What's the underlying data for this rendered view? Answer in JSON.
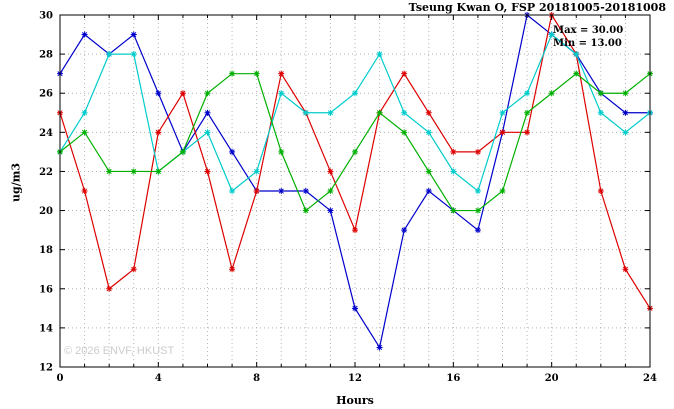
{
  "chart_data": {
    "type": "line",
    "title": "Tseung Kwan O, FSP 20181005-20181008",
    "xlabel": "Hours",
    "ylabel": "ug/m3",
    "xlim": [
      0,
      24
    ],
    "ylim": [
      12,
      30
    ],
    "xticks": [
      0,
      4,
      8,
      12,
      16,
      20,
      24
    ],
    "yticks": [
      12,
      14,
      16,
      18,
      20,
      22,
      24,
      26,
      28,
      30
    ],
    "grid": true,
    "legend": "none",
    "marker": "asterisk",
    "hours": [
      0,
      1,
      2,
      3,
      4,
      5,
      6,
      7,
      8,
      9,
      10,
      11,
      12,
      13,
      14,
      15,
      16,
      17,
      18,
      19,
      20,
      21,
      22,
      23,
      24
    ],
    "series": [
      {
        "name": "series-blue",
        "color": "#0000cc",
        "values": [
          27,
          29,
          28,
          29,
          26,
          23,
          25,
          23,
          21,
          21,
          21,
          20,
          15,
          13,
          19,
          21,
          20,
          19,
          24,
          30,
          29,
          28,
          26,
          25,
          25
        ]
      },
      {
        "name": "series-red",
        "color": "#dd0000",
        "values": [
          25,
          21,
          16,
          17,
          24,
          26,
          22,
          17,
          21,
          27,
          25,
          22,
          19,
          25,
          27,
          25,
          23,
          23,
          24,
          24,
          30,
          28,
          21,
          17,
          15
        ]
      },
      {
        "name": "series-cyan",
        "color": "#00cccc",
        "values": [
          23,
          25,
          28,
          28,
          22,
          23,
          24,
          21,
          22,
          26,
          25,
          25,
          26,
          28,
          25,
          24,
          22,
          21,
          25,
          26,
          29,
          28,
          25,
          24,
          25
        ]
      },
      {
        "name": "series-green",
        "color": "#00b000",
        "values": [
          23,
          24,
          22,
          22,
          22,
          23,
          26,
          27,
          27,
          23,
          20,
          21,
          23,
          25,
          24,
          22,
          20,
          20,
          21,
          25,
          26,
          27,
          26,
          26,
          27
        ]
      }
    ],
    "annotations": {
      "max_label": "Max = 30.00",
      "min_label": "Min = 13.00"
    },
    "watermark": "© 2026 ENVF, HKUST"
  }
}
